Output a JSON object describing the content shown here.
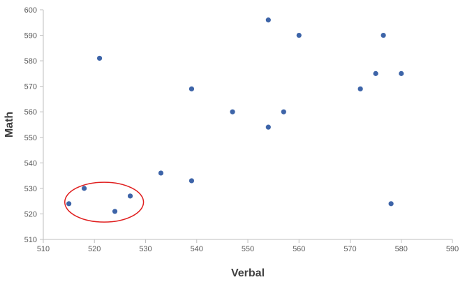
{
  "chart_data": {
    "type": "scatter",
    "xlabel": "Verbal",
    "ylabel": "Math",
    "xlim": [
      510,
      590
    ],
    "ylim": [
      510,
      600
    ],
    "x_ticks": [
      510,
      520,
      530,
      540,
      550,
      560,
      570,
      580,
      590
    ],
    "y_ticks": [
      510,
      520,
      530,
      540,
      550,
      560,
      570,
      580,
      590,
      600
    ],
    "grid": false,
    "legend": "none",
    "series": [
      {
        "color": "#3d64a8",
        "points": [
          {
            "x": 515,
            "y": 524
          },
          {
            "x": 518,
            "y": 530
          },
          {
            "x": 521,
            "y": 581
          },
          {
            "x": 524,
            "y": 521
          },
          {
            "x": 527,
            "y": 527
          },
          {
            "x": 533,
            "y": 536
          },
          {
            "x": 539,
            "y": 569
          },
          {
            "x": 539,
            "y": 533
          },
          {
            "x": 547,
            "y": 560
          },
          {
            "x": 554,
            "y": 596
          },
          {
            "x": 554,
            "y": 554
          },
          {
            "x": 557,
            "y": 560
          },
          {
            "x": 560,
            "y": 590
          },
          {
            "x": 572,
            "y": 569
          },
          {
            "x": 575,
            "y": 575
          },
          {
            "x": 576.5,
            "y": 590
          },
          {
            "x": 578,
            "y": 524
          },
          {
            "x": 580,
            "y": 575
          }
        ]
      }
    ],
    "annotations": [
      {
        "type": "ellipse",
        "color": "#e02020",
        "center": {
          "x": 521.9,
          "y": 524.6
        },
        "radius_x": 7.7,
        "radius_y": 7.8
      }
    ]
  }
}
